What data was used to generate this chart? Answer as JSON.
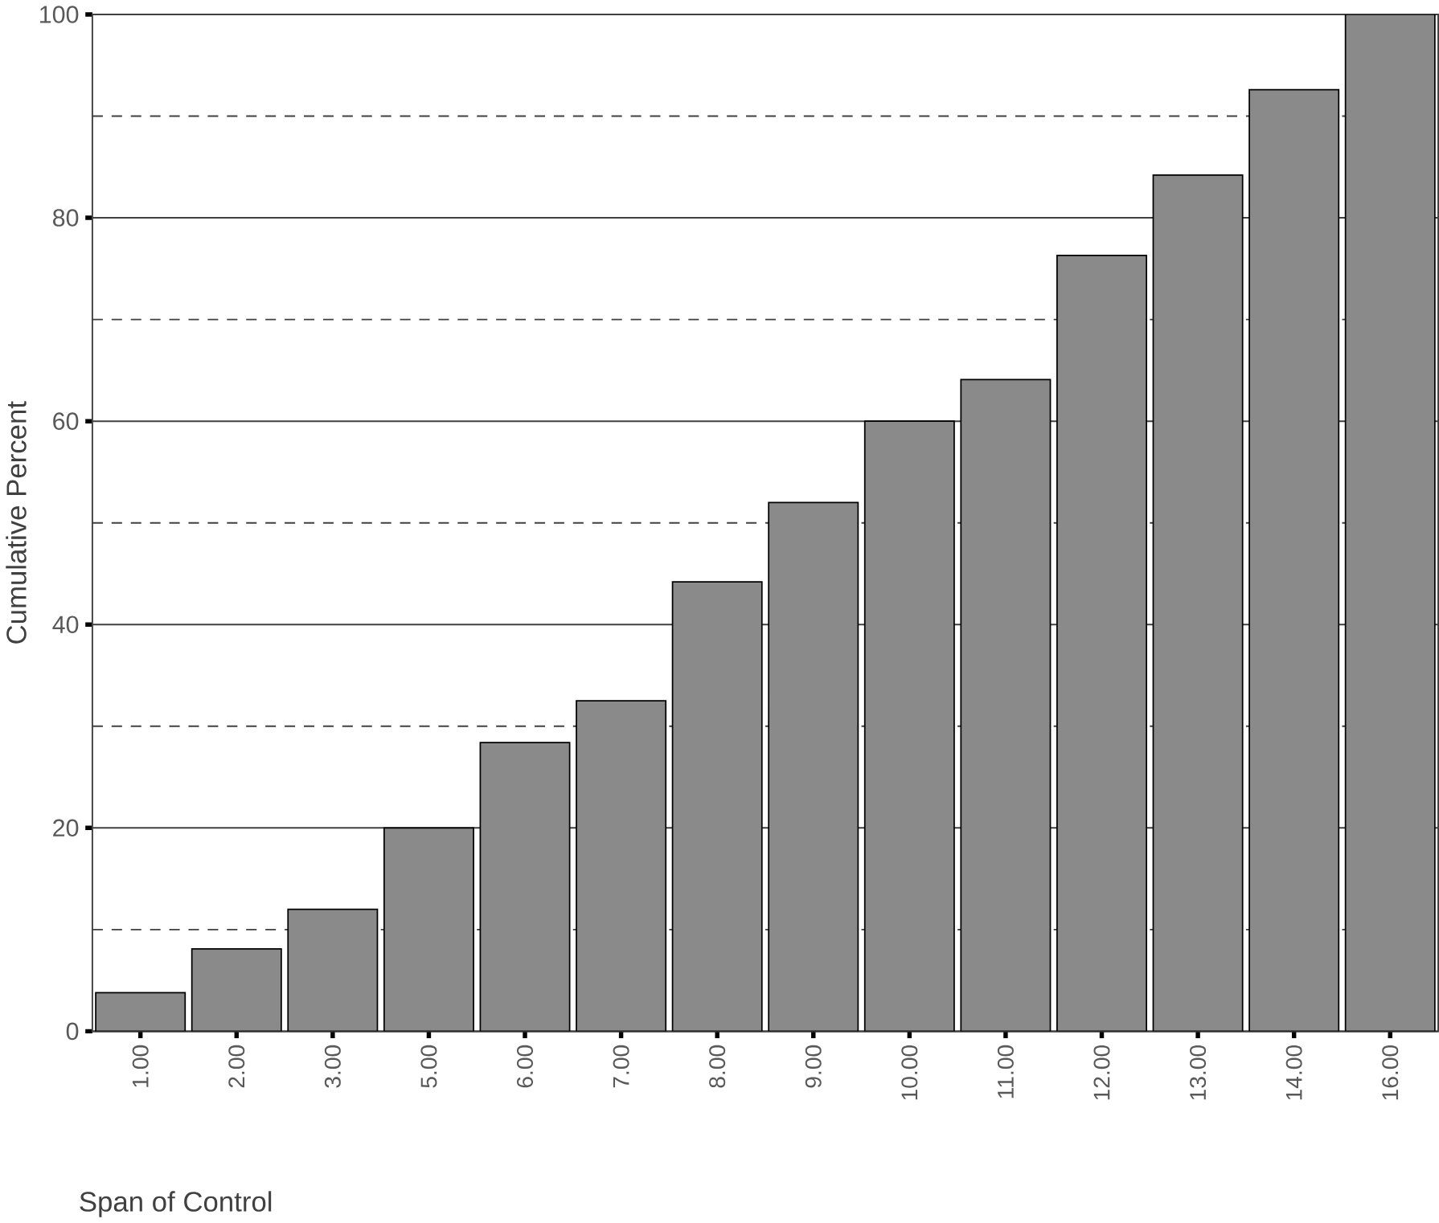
{
  "chart_data": {
    "type": "bar",
    "xlabel": "Span of Control",
    "ylabel": "Cumulative Percent",
    "categories": [
      "1.00",
      "2.00",
      "3.00",
      "5.00",
      "6.00",
      "7.00",
      "8.00",
      "9.00",
      "10.00",
      "11.00",
      "12.00",
      "13.00",
      "14.00",
      "16.00"
    ],
    "values": [
      3.8,
      8.1,
      12.0,
      20.0,
      28.4,
      32.5,
      44.2,
      52.0,
      60.0,
      64.1,
      76.3,
      84.2,
      92.6,
      100
    ],
    "color": "#8a8a8a",
    "ylim": [
      0,
      100
    ],
    "yticks": [
      0,
      20,
      40,
      60,
      80,
      100
    ],
    "grid": "y",
    "ref_lines": [
      {
        "axis": "y",
        "value": 10,
        "line_style": "dashed"
      },
      {
        "axis": "y",
        "value": 30,
        "line_style": "dashed"
      },
      {
        "axis": "y",
        "value": 50,
        "line_style": "dashed"
      },
      {
        "axis": "y",
        "value": 70,
        "line_style": "dashed"
      },
      {
        "axis": "y",
        "value": 90,
        "line_style": "dashed"
      }
    ]
  }
}
